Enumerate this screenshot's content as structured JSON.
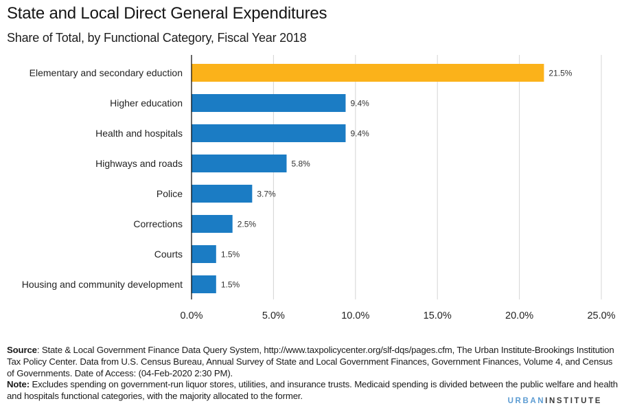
{
  "header": {
    "title": "State and Local Direct General Expenditures",
    "subtitle": "Share of Total, by Functional Category, Fiscal Year 2018"
  },
  "colors": {
    "highlight": "#fbb21a",
    "bar": "#1b7cc4",
    "gridline": "#d4d4d4",
    "axis": "#000000"
  },
  "chart_data": {
    "type": "bar",
    "orientation": "horizontal",
    "title": "State and Local Direct General Expenditures",
    "subtitle": "Share of Total, by Functional Category, Fiscal Year 2018",
    "xlabel": "",
    "ylabel": "",
    "xlim": [
      0,
      25
    ],
    "x_ticks": [
      0,
      5,
      10,
      15,
      20,
      25
    ],
    "x_tick_labels": [
      "0.0%",
      "5.0%",
      "10.0%",
      "15.0%",
      "20.0%",
      "25.0%"
    ],
    "grid": "vertical",
    "legend": "none",
    "categories": [
      "Elementary and secondary eduction",
      "Higher education",
      "Health and hospitals",
      "Highways and roads",
      "Police",
      "Corrections",
      "Courts",
      "Housing and community development"
    ],
    "values": [
      21.5,
      9.4,
      9.4,
      5.8,
      3.7,
      2.5,
      1.5,
      1.5
    ],
    "value_labels": [
      "21.5%",
      "9.4%",
      "9.4%",
      "5.8%",
      "3.7%",
      "2.5%",
      "1.5%",
      "1.5%"
    ],
    "highlighted_index": 0
  },
  "footer": {
    "source_label": "Source",
    "source_text": ": State & Local Government Finance Data Query System, http://www.taxpolicycenter.org/slf-dqs/pages.cfm, The Urban Institute-Brookings Institution Tax Policy Center. Data from U.S. Census Bureau, Annual Survey of State and Local Government Finances, Government Finances, Volume 4, and Census of Governments. Date of Access: (04-Feb-2020 2:30 PM).",
    "note_label": "Note:",
    "note_text": " Excludes spending on government-run liquor stores, utilities, and insurance trusts. Medicaid spending is divided between the public welfare and health and hospitals functional categories, with the majority allocated to the former.",
    "logo_part1": "URBAN",
    "logo_part2": "INSTITUTE"
  }
}
